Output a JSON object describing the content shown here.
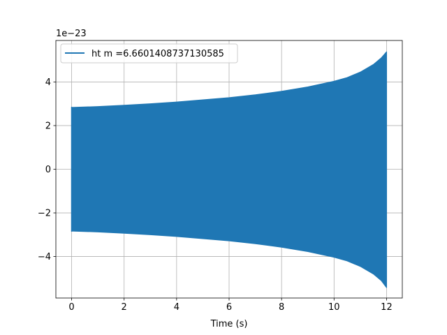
{
  "chart_data": {
    "type": "line",
    "title": "",
    "xlabel": "Time (s)",
    "ylabel": "",
    "offset_text": "1e−23",
    "offset_exponent": -23,
    "xlim": [
      -0.6,
      12.6
    ],
    "ylim": [
      -5.9,
      5.9
    ],
    "x_ticks": [
      0,
      2,
      4,
      6,
      8,
      10,
      12
    ],
    "y_ticks": [
      -4,
      -2,
      0,
      2,
      4
    ],
    "grid": true,
    "legend": {
      "placement": "upper-left"
    },
    "series": [
      {
        "name": "ht m =6.6601408737130585",
        "color": "#1f77b4",
        "envelope": {
          "x": [
            0,
            1,
            2,
            3,
            4,
            5,
            6,
            7,
            8,
            9,
            10,
            10.5,
            11,
            11.5,
            11.8,
            12
          ],
          "upper": [
            2.83,
            2.87,
            2.93,
            3.0,
            3.08,
            3.18,
            3.28,
            3.41,
            3.57,
            3.77,
            4.03,
            4.2,
            4.45,
            4.8,
            5.1,
            5.38
          ],
          "lower": [
            -2.83,
            -2.87,
            -2.93,
            -3.0,
            -3.08,
            -3.18,
            -3.28,
            -3.41,
            -3.57,
            -3.77,
            -4.03,
            -4.2,
            -4.45,
            -4.8,
            -5.1,
            -5.42
          ]
        }
      }
    ]
  }
}
